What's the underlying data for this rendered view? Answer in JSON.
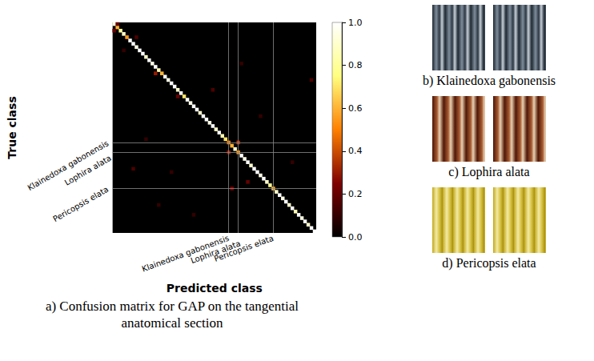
{
  "chart_data": {
    "type": "heatmap",
    "caption": "a) Confusion matrix for GAP on the tangential anatomical section",
    "xlabel": "Predicted class",
    "ylabel": "True class",
    "categories": [
      null,
      null,
      null,
      null,
      null,
      null,
      null,
      null,
      null,
      null,
      null,
      null,
      null,
      null,
      null,
      null,
      null,
      null,
      null,
      null,
      null,
      null,
      null,
      null,
      null,
      null,
      null,
      null,
      null,
      null,
      null,
      null,
      null,
      null,
      null,
      null,
      "Klainedoxa gabonensis",
      null,
      null,
      "Lophira alata",
      null,
      null,
      null,
      null,
      null,
      null,
      null,
      null,
      null,
      null,
      "Pericopsis elata",
      null,
      null,
      null,
      null,
      null,
      null,
      null,
      null,
      null,
      null,
      null,
      null,
      null
    ],
    "cells": [
      [
        0,
        0,
        0.95
      ],
      [
        1,
        1,
        0.6
      ],
      [
        2,
        2,
        0.8
      ],
      [
        3,
        3,
        0.9
      ],
      [
        4,
        4,
        0.55
      ],
      [
        5,
        5,
        1
      ],
      [
        6,
        6,
        1
      ],
      [
        7,
        7,
        0.95
      ],
      [
        8,
        8,
        1
      ],
      [
        9,
        9,
        1
      ],
      [
        10,
        10,
        0.9
      ],
      [
        11,
        11,
        1
      ],
      [
        12,
        12,
        0.95
      ],
      [
        13,
        13,
        1
      ],
      [
        14,
        14,
        0.85
      ],
      [
        15,
        15,
        0.6
      ],
      [
        16,
        16,
        1
      ],
      [
        17,
        17,
        0.95
      ],
      [
        18,
        18,
        1
      ],
      [
        19,
        19,
        1
      ],
      [
        20,
        20,
        0.9
      ],
      [
        21,
        21,
        1
      ],
      [
        22,
        22,
        0.7
      ],
      [
        23,
        23,
        1
      ],
      [
        24,
        24,
        0.95
      ],
      [
        25,
        25,
        1
      ],
      [
        26,
        26,
        1
      ],
      [
        27,
        27,
        0.9
      ],
      [
        28,
        28,
        1
      ],
      [
        29,
        29,
        1
      ],
      [
        30,
        30,
        0.95
      ],
      [
        31,
        31,
        1
      ],
      [
        32,
        32,
        0.9
      ],
      [
        33,
        33,
        1
      ],
      [
        34,
        34,
        0.85
      ],
      [
        35,
        35,
        0.7
      ],
      [
        36,
        36,
        0.5
      ],
      [
        37,
        37,
        0.6
      ],
      [
        38,
        38,
        0.9
      ],
      [
        39,
        39,
        0.55
      ],
      [
        40,
        40,
        1
      ],
      [
        41,
        41,
        0.95
      ],
      [
        42,
        42,
        1
      ],
      [
        43,
        43,
        0.9
      ],
      [
        44,
        44,
        1
      ],
      [
        45,
        45,
        1
      ],
      [
        46,
        46,
        0.95
      ],
      [
        47,
        47,
        1
      ],
      [
        48,
        48,
        0.9
      ],
      [
        49,
        49,
        0.8
      ],
      [
        50,
        50,
        0.6
      ],
      [
        51,
        51,
        0.9
      ],
      [
        52,
        52,
        1
      ],
      [
        53,
        53,
        0.95
      ],
      [
        54,
        54,
        1
      ],
      [
        55,
        55,
        0.9
      ],
      [
        56,
        56,
        1
      ],
      [
        57,
        57,
        0.85
      ],
      [
        58,
        58,
        1
      ],
      [
        59,
        59,
        0.95
      ],
      [
        60,
        60,
        1
      ],
      [
        61,
        61,
        0.9
      ],
      [
        62,
        62,
        1
      ],
      [
        63,
        63,
        1
      ],
      [
        39,
        36,
        0.35
      ],
      [
        36,
        39,
        0.3
      ],
      [
        37,
        50,
        0.25
      ],
      [
        0,
        2,
        0.2
      ],
      [
        1,
        0,
        0.2
      ],
      [
        7,
        4,
        0.15
      ],
      [
        3,
        8,
        0.1
      ],
      [
        13,
        15,
        0.3
      ],
      [
        20,
        22,
        0.2
      ],
      [
        31,
        20,
        0.15
      ],
      [
        10,
        35,
        0.1
      ],
      [
        6,
        44,
        0.15
      ],
      [
        18,
        45,
        0.1
      ],
      [
        42,
        48,
        0.2
      ],
      [
        14,
        55,
        0.1
      ],
      [
        25,
        58,
        0.1
      ],
      [
        40,
        12,
        0.1
      ],
      [
        46,
        28,
        0.1
      ],
      [
        56,
        42,
        0.1
      ],
      [
        62,
        17,
        0.15
      ]
    ],
    "colorbar": {
      "range": [
        0,
        1
      ],
      "ticks": [
        {
          "value": 0,
          "label": "0.0"
        },
        {
          "value": 0.2,
          "label": "0.2"
        },
        {
          "value": 0.4,
          "label": "0.4"
        },
        {
          "value": 0.6,
          "label": "0.6"
        },
        {
          "value": 0.8,
          "label": "0.8"
        },
        {
          "value": 1,
          "label": "1.0"
        }
      ]
    }
  },
  "panels": [
    {
      "caption": "b) Klainedoxa gabonensis"
    },
    {
      "caption": "c) Lophira alata"
    },
    {
      "caption": "d) Pericopsis elata"
    }
  ]
}
